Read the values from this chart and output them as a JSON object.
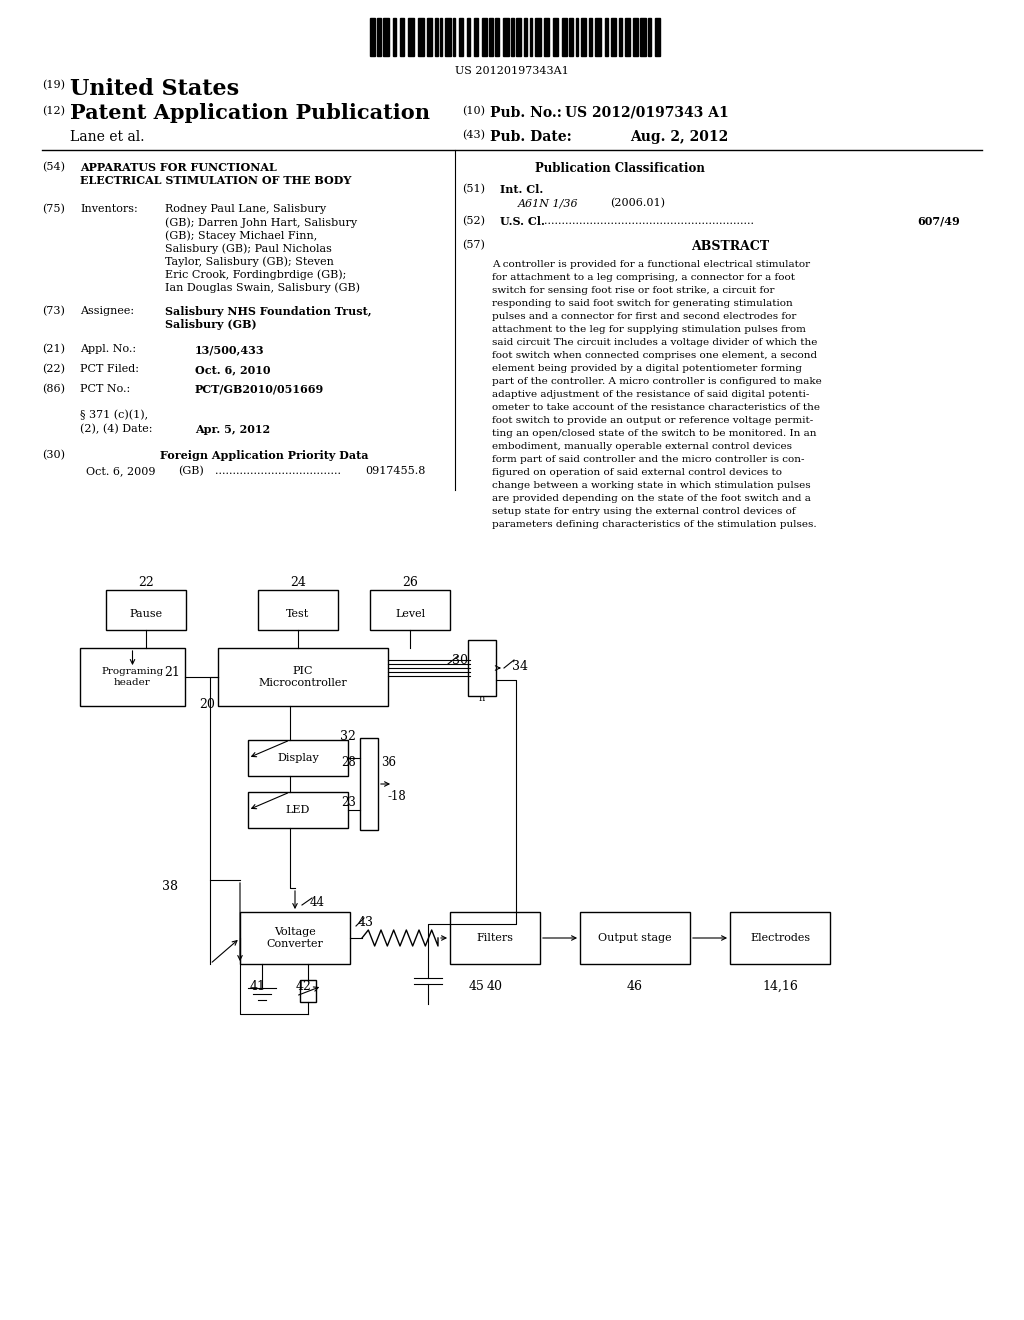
{
  "background_color": "#ffffff",
  "barcode_text": "US 20120197343A1",
  "header": {
    "num19": "(19)",
    "us": "United States",
    "num12": "(12)",
    "patent": "Patent Application Publication",
    "lane": "Lane et al.",
    "num10": "(10)",
    "pubno_label": "Pub. No.:",
    "pubno": "US 2012/0197343 A1",
    "num43": "(43)",
    "pubdate_label": "Pub. Date:",
    "pubdate": "Aug. 2, 2012"
  },
  "left_col": {
    "num54": "(54)",
    "title1": "APPARATUS FOR FUNCTIONAL",
    "title2": "ELECTRICAL STIMULATION OF THE BODY",
    "num75": "(75)",
    "inventors_label": "Inventors:",
    "inventors_lines": [
      "Rodney Paul Lane, Salisbury",
      "(GB); Darren John Hart, Salisbury",
      "(GB); Stacey Michael Finn,",
      "Salisbury (GB); Paul Nicholas",
      "Taylor, Salisbury (GB); Steven",
      "Eric Crook, Fordingbrdige (GB);",
      "Ian Douglas Swain, Salisbury (GB)"
    ],
    "num73": "(73)",
    "assignee_label": "Assignee:",
    "assignee_lines": [
      "Salisbury NHS Foundation Trust,",
      "Salisbury (GB)"
    ],
    "num21": "(21)",
    "appl_label": "Appl. No.:",
    "appl_no": "13/500,433",
    "num22": "(22)",
    "pct_filed_label": "PCT Filed:",
    "pct_filed": "Oct. 6, 2010",
    "num86": "(86)",
    "pct_no_label": "PCT No.:",
    "pct_no": "PCT/GB2010/051669",
    "section371a": "§ 371 (c)(1),",
    "section371b": "(2), (4) Date:",
    "section371_date": "Apr. 5, 2012",
    "num30": "(30)",
    "foreign_label": "Foreign Application Priority Data",
    "foreign_date": "Oct. 6, 2009",
    "foreign_country": "(GB)",
    "foreign_dots": "....................................",
    "foreign_no": "0917455.8"
  },
  "right_col": {
    "pub_class_title": "Publication Classification",
    "num51": "(51)",
    "intcl_label": "Int. Cl.",
    "intcl_code": "A61N 1/36",
    "intcl_year": "(2006.01)",
    "num52": "(52)",
    "uscl_label": "U.S. Cl.",
    "uscl_dots": "............................................................",
    "uscl_no": "607/49",
    "num57": "(57)",
    "abstract_title": "ABSTRACT",
    "abstract_lines": [
      "A controller is provided for a functional electrical stimulator",
      "for attachment to a leg comprising, a connector for a foot",
      "switch for sensing foot rise or foot strike, a circuit for",
      "responding to said foot switch for generating stimulation",
      "pulses and a connector for first and second electrodes for",
      "attachment to the leg for supplying stimulation pulses from",
      "said circuit The circuit includes a voltage divider of which the",
      "foot switch when connected comprises one element, a second",
      "element being provided by a digital potentiometer forming",
      "part of the controller. A micro controller is configured to make",
      "adaptive adjustment of the resistance of said digital potenti-",
      "ometer to take account of the resistance characteristics of the",
      "foot switch to provide an output or reference voltage permit-",
      "ting an open/closed state of the switch to be monitored. In an",
      "embodiment, manually operable external control devices",
      "form part of said controller and the micro controller is con-",
      "figured on operation of said external control devices to",
      "change between a working state in which stimulation pulses",
      "are provided depending on the state of the foot switch and a",
      "setup state for entry using the external control devices of",
      "parameters defining characteristics of the stimulation pulses."
    ]
  }
}
